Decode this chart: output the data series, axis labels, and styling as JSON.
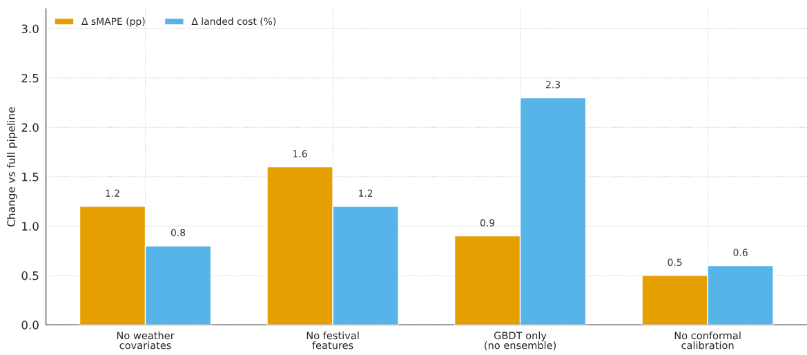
{
  "chart_data": {
    "type": "bar",
    "categories": [
      "No weather\ncovariates",
      "No festival\nfeatures",
      "GBDT only\n(no ensemble)",
      "No conformal\ncalibration"
    ],
    "series": [
      {
        "name": "Δ sMAPE (pp)",
        "color": "#e69f00",
        "values": [
          1.2,
          1.6,
          0.9,
          0.5
        ]
      },
      {
        "name": "Δ landed cost (%)",
        "color": "#56b4e9",
        "values": [
          0.8,
          1.2,
          2.3,
          0.6
        ]
      }
    ],
    "ylabel": "Change vs full pipeline",
    "ylim": [
      0,
      3.2
    ],
    "yticks": [
      {
        "value": 0,
        "label": "0.0"
      },
      0.5,
      {
        "value": 1,
        "label": "1.0"
      },
      1.5,
      {
        "value": 2,
        "label": "2.0"
      },
      2.5,
      {
        "value": 3,
        "label": "3.0"
      }
    ],
    "grid": true,
    "legend": "top left",
    "data_labels": true
  }
}
